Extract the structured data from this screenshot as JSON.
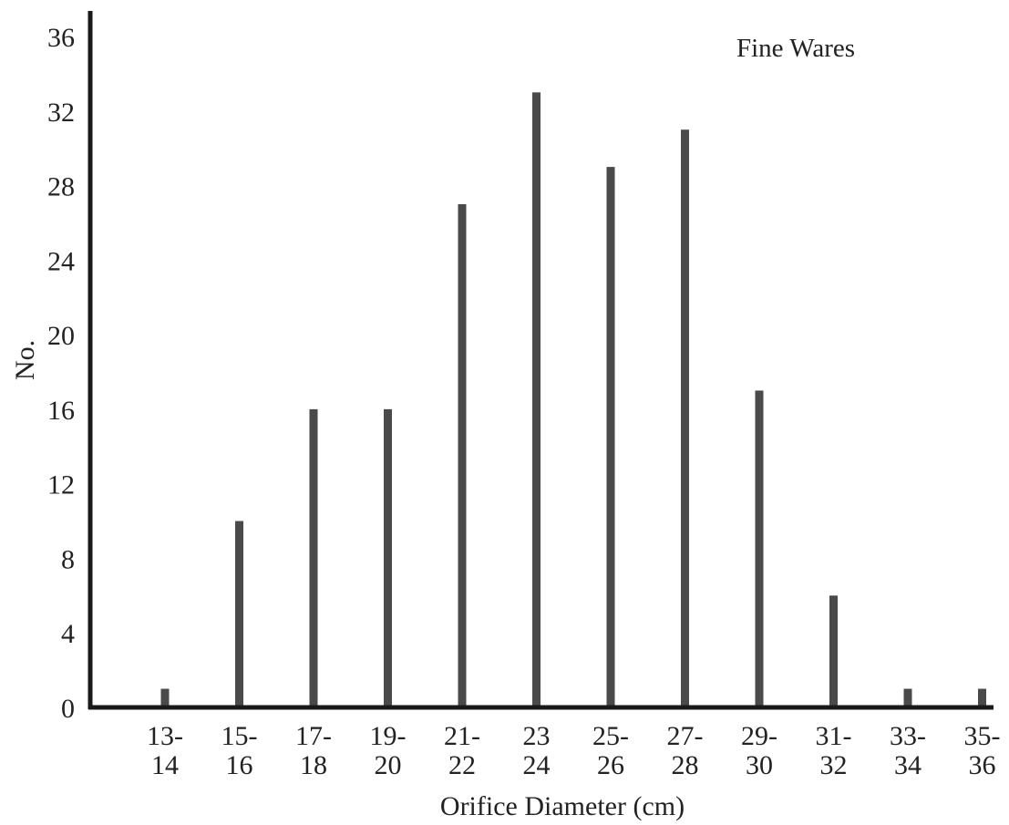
{
  "chart_data": {
    "type": "bar",
    "title": "",
    "annotation": "Fine Wares",
    "xlabel": "Orifice Diameter (cm)",
    "ylabel": "No.",
    "ylim": [
      0,
      36
    ],
    "yticks": [
      0,
      4,
      8,
      12,
      16,
      20,
      24,
      28,
      32,
      36
    ],
    "grid": false,
    "categories": [
      {
        "top": "13-",
        "bottom": "14"
      },
      {
        "top": "15-",
        "bottom": "16"
      },
      {
        "top": "17-",
        "bottom": "18"
      },
      {
        "top": "19-",
        "bottom": "20"
      },
      {
        "top": "21-",
        "bottom": "22"
      },
      {
        "top": "23",
        "bottom": "24"
      },
      {
        "top": "25-",
        "bottom": "26"
      },
      {
        "top": "27-",
        "bottom": "28"
      },
      {
        "top": "29-",
        "bottom": "30"
      },
      {
        "top": "31-",
        "bottom": "32"
      },
      {
        "top": "33-",
        "bottom": "34"
      },
      {
        "top": "35-",
        "bottom": "36"
      }
    ],
    "values": [
      1,
      10,
      16,
      16,
      27,
      33,
      29,
      31,
      17,
      6,
      1,
      1
    ],
    "colors": {
      "bar": "#4a4a4a",
      "axis": "#1a1a1a",
      "text": "#222222"
    }
  }
}
